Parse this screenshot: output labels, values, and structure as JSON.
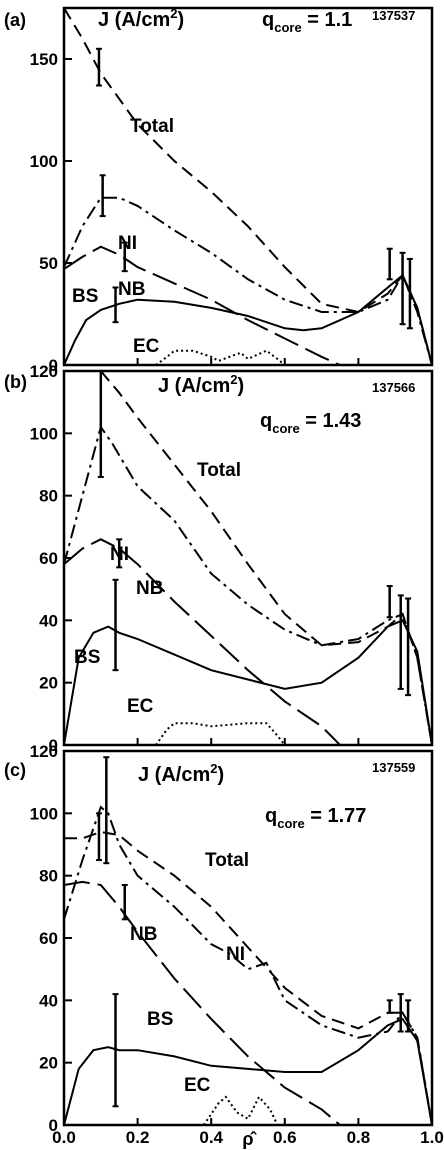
{
  "chart_data": [
    {
      "type": "line",
      "panel_label": "(a)",
      "ylabel_main": "J (A/cm",
      "ylabel_sup": "2",
      "ylabel_close": ")",
      "q_main": "q",
      "q_sub": "core",
      "q_value": " = 1.1",
      "shot": "137537",
      "ylim": [
        0,
        175
      ],
      "yticks": [
        0,
        50,
        100,
        150
      ],
      "ytick_labels": [
        "0",
        "50",
        "100",
        "150"
      ],
      "xlim": [
        0,
        1
      ],
      "series": [
        {
          "name": "Total",
          "style": "short-dash",
          "x": [
            0.0,
            0.05,
            0.1,
            0.2,
            0.3,
            0.4,
            0.5,
            0.6,
            0.7,
            0.8,
            0.88,
            0.92,
            0.96,
            1.0
          ],
          "y": [
            175,
            160,
            143,
            118,
            100,
            85,
            68,
            48,
            30,
            26,
            35,
            44,
            28,
            0
          ]
        },
        {
          "name": "NI",
          "style": "dash-dot",
          "x": [
            0.0,
            0.05,
            0.1,
            0.15,
            0.2,
            0.3,
            0.4,
            0.5,
            0.6,
            0.7,
            0.8,
            0.88,
            0.92,
            0.96,
            1.0
          ],
          "y": [
            48,
            68,
            82,
            82,
            78,
            66,
            55,
            42,
            32,
            26,
            26,
            32,
            44,
            26,
            0
          ]
        },
        {
          "name": "NB",
          "style": "long-dash",
          "x": [
            0.0,
            0.05,
            0.1,
            0.15,
            0.2,
            0.3,
            0.4,
            0.5,
            0.6,
            0.7,
            0.75
          ],
          "y": [
            47,
            53,
            58,
            54,
            48,
            40,
            32,
            22,
            13,
            4,
            0
          ]
        },
        {
          "name": "BS",
          "style": "solid",
          "x": [
            0.0,
            0.03,
            0.06,
            0.1,
            0.15,
            0.2,
            0.3,
            0.4,
            0.5,
            0.6,
            0.65,
            0.7,
            0.8,
            0.88,
            0.92,
            0.96,
            1.0
          ],
          "y": [
            0,
            12,
            22,
            27,
            30,
            32,
            31,
            28,
            24,
            18,
            17,
            18,
            26,
            38,
            44,
            28,
            0
          ]
        },
        {
          "name": "EC",
          "style": "dotted",
          "x": [
            0.25,
            0.28,
            0.3,
            0.35,
            0.4,
            0.42,
            0.45,
            0.48,
            0.5,
            0.55,
            0.58,
            0.6
          ],
          "y": [
            0,
            4,
            7,
            7,
            4,
            2,
            4,
            6,
            3,
            7,
            3,
            0
          ]
        }
      ],
      "error_bars": [
        {
          "x": 0.095,
          "low": 137,
          "high": 155
        },
        {
          "x": 0.105,
          "low": 73,
          "high": 93
        },
        {
          "x": 0.14,
          "low": 21,
          "high": 38
        },
        {
          "x": 0.165,
          "low": 46,
          "high": 60
        },
        {
          "x": 0.885,
          "low": 42,
          "high": 57
        },
        {
          "x": 0.92,
          "low": 20,
          "high": 55
        },
        {
          "x": 0.94,
          "low": 18,
          "high": 52
        }
      ]
    },
    {
      "type": "line",
      "panel_label": "(b)",
      "ylabel_main": "J (A/cm",
      "ylabel_sup": "2",
      "ylabel_close": ")",
      "q_main": "q",
      "q_sub": "core",
      "q_value": " = 1.43",
      "shot": "137566",
      "ylim": [
        0,
        120
      ],
      "yticks": [
        0,
        20,
        40,
        60,
        80,
        100,
        120
      ],
      "ytick_labels": [
        "0",
        "20",
        "40",
        "60",
        "80",
        "100",
        "120"
      ],
      "xlim": [
        0,
        1
      ],
      "series": [
        {
          "name": "Total",
          "style": "short-dash",
          "x": [
            0.1,
            0.15,
            0.2,
            0.3,
            0.4,
            0.5,
            0.6,
            0.7,
            0.8,
            0.88,
            0.92,
            0.96,
            1.0
          ],
          "y": [
            120,
            113,
            105,
            90,
            75,
            58,
            42,
            32,
            33,
            38,
            42,
            28,
            0
          ]
        },
        {
          "name": "NI",
          "style": "dash-dot",
          "x": [
            0.0,
            0.05,
            0.1,
            0.13,
            0.2,
            0.3,
            0.4,
            0.5,
            0.6,
            0.7,
            0.8,
            0.88,
            0.92,
            0.96,
            1.0
          ],
          "y": [
            58,
            80,
            102,
            97,
            83,
            72,
            55,
            45,
            37,
            32,
            34,
            40,
            42,
            28,
            0
          ]
        },
        {
          "name": "NB",
          "style": "long-dash",
          "x": [
            0.0,
            0.05,
            0.1,
            0.15,
            0.2,
            0.3,
            0.4,
            0.5,
            0.6,
            0.7,
            0.75
          ],
          "y": [
            58,
            63,
            66,
            63,
            58,
            46,
            35,
            24,
            14,
            6,
            0
          ]
        },
        {
          "name": "BS",
          "style": "solid",
          "x": [
            0.0,
            0.04,
            0.08,
            0.12,
            0.15,
            0.2,
            0.3,
            0.4,
            0.5,
            0.6,
            0.7,
            0.8,
            0.88,
            0.92,
            0.96,
            1.0
          ],
          "y": [
            0,
            28,
            36,
            38,
            36,
            34,
            29,
            24,
            21,
            18,
            20,
            28,
            38,
            40,
            30,
            0
          ]
        },
        {
          "name": "EC",
          "style": "dotted",
          "x": [
            0.25,
            0.28,
            0.3,
            0.35,
            0.4,
            0.5,
            0.55,
            0.58,
            0.6
          ],
          "y": [
            0,
            5,
            7,
            7,
            6,
            7,
            7,
            3,
            0
          ]
        }
      ],
      "error_bars": [
        {
          "x": 0.1,
          "low": 86,
          "high": 120
        },
        {
          "x": 0.14,
          "low": 24,
          "high": 53
        },
        {
          "x": 0.15,
          "low": 57,
          "high": 66
        },
        {
          "x": 0.885,
          "low": 41,
          "high": 51
        },
        {
          "x": 0.915,
          "low": 18,
          "high": 48
        },
        {
          "x": 0.935,
          "low": 16,
          "high": 47
        }
      ]
    },
    {
      "type": "line",
      "panel_label": "(c)",
      "ylabel_main": "J (A/cm",
      "ylabel_sup": "2",
      "ylabel_close": ")",
      "q_main": "q",
      "q_sub": "core",
      "q_value": " = 1.77",
      "shot": "137559",
      "ylim": [
        0,
        120
      ],
      "yticks": [
        0,
        20,
        40,
        60,
        80,
        100,
        120
      ],
      "ytick_labels": [
        "0",
        "20",
        "40",
        "60",
        "80",
        "100",
        "120"
      ],
      "xlim": [
        0,
        1
      ],
      "xticks": [
        0,
        0.2,
        0.4,
        0.6,
        0.8,
        1.0
      ],
      "xtick_labels": [
        "0.0",
        "0.2",
        "0.4",
        "0.6",
        "0.8",
        "1.0"
      ],
      "xlabel": "ρ̂",
      "series": [
        {
          "name": "Total",
          "style": "short-dash",
          "x": [
            0.0,
            0.05,
            0.1,
            0.15,
            0.2,
            0.3,
            0.4,
            0.5,
            0.6,
            0.7,
            0.8,
            0.88,
            0.92,
            0.96,
            1.0
          ],
          "y": [
            92,
            92,
            94,
            93,
            88,
            80,
            70,
            57,
            44,
            35,
            31,
            36,
            36,
            28,
            0
          ]
        },
        {
          "name": "NI",
          "style": "dash-dot",
          "x": [
            0.0,
            0.05,
            0.1,
            0.12,
            0.15,
            0.2,
            0.3,
            0.4,
            0.45,
            0.5,
            0.55,
            0.6,
            0.7,
            0.8,
            0.88,
            0.92,
            0.96,
            1.0
          ],
          "y": [
            66,
            85,
            102,
            100,
            90,
            80,
            70,
            58,
            55,
            50,
            52,
            40,
            32,
            28,
            30,
            36,
            28,
            0
          ]
        },
        {
          "name": "NB",
          "style": "long-dash",
          "x": [
            0.0,
            0.05,
            0.1,
            0.15,
            0.2,
            0.3,
            0.4,
            0.5,
            0.6,
            0.7,
            0.75
          ],
          "y": [
            77,
            78,
            77,
            70,
            62,
            47,
            34,
            22,
            12,
            5,
            0
          ]
        },
        {
          "name": "BS",
          "style": "solid",
          "x": [
            0.0,
            0.04,
            0.08,
            0.12,
            0.15,
            0.2,
            0.3,
            0.4,
            0.5,
            0.6,
            0.7,
            0.8,
            0.88,
            0.92,
            0.96,
            1.0
          ],
          "y": [
            0,
            18,
            24,
            25,
            24,
            24,
            22,
            19,
            18,
            17,
            17,
            24,
            32,
            34,
            27,
            0
          ]
        },
        {
          "name": "EC",
          "style": "dotted",
          "x": [
            0.38,
            0.42,
            0.44,
            0.47,
            0.5,
            0.53,
            0.56,
            0.58
          ],
          "y": [
            0,
            7,
            9,
            4,
            2,
            9,
            5,
            0
          ]
        }
      ],
      "error_bars": [
        {
          "x": 0.095,
          "low": 85,
          "high": 100
        },
        {
          "x": 0.115,
          "low": 84,
          "high": 118
        },
        {
          "x": 0.14,
          "low": 6,
          "high": 42
        },
        {
          "x": 0.165,
          "low": 66,
          "high": 77
        },
        {
          "x": 0.885,
          "low": 36,
          "high": 40
        },
        {
          "x": 0.915,
          "low": 30,
          "high": 42
        },
        {
          "x": 0.935,
          "low": 30,
          "high": 40
        }
      ]
    }
  ]
}
